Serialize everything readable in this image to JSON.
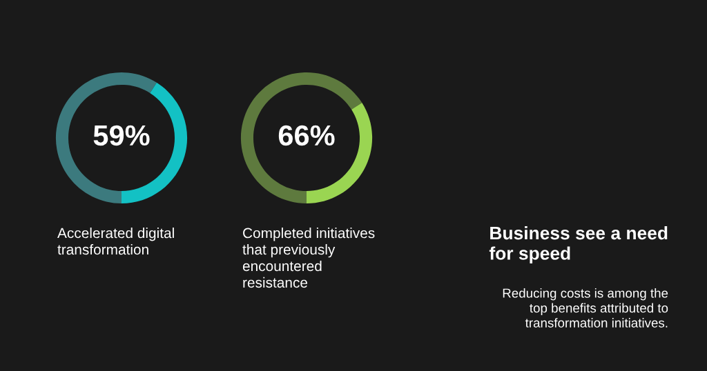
{
  "chart_data": [
    {
      "type": "donut",
      "title": "Accelerated digital\ntransformation",
      "categories": [
        null,
        null
      ],
      "values": [
        59,
        41
      ],
      "colors": [
        "#3c7a7e",
        "#13c1c4"
      ],
      "value_labels": [
        "59%",
        null
      ]
    },
    {
      "type": "donut",
      "title": "Completed initiatives\nthat previously\nencountered\nresistance",
      "categories": [
        null,
        null
      ],
      "values": [
        66,
        34
      ],
      "colors": [
        "#5e7a3e",
        "#9ad552"
      ],
      "value_labels": [
        "66%",
        null
      ]
    },
    {
      "type": "other",
      "title": "Business see a need\nfor speed",
      "subtitle": "Reducing costs is among the\ntop benefits attributed to\ntransformation initiatives."
    }
  ]
}
